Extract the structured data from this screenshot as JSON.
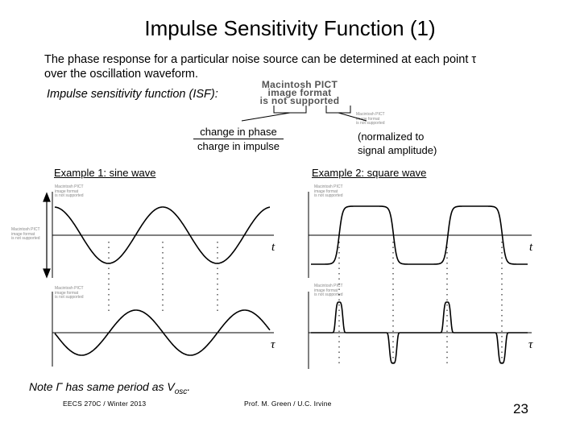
{
  "slide": {
    "title": "Impulse Sensitivity Function (1)",
    "intro_line1": "The phase response for a particular noise source can be determined at each point τ",
    "intro_line2": "over the oscillation waveform.",
    "isf_label": "Impulse sensitivity function (ISF):",
    "pict_large_line1": "Macintosh PICT",
    "pict_large_line2": "image format",
    "pict_large_line3": "is not supported",
    "pict_small": "Macintosh PICT\nimage format\nis not supported",
    "fraction_numerator": "change in phase",
    "fraction_denominator": "charge in impulse",
    "normalized_line1": "(normalized to",
    "normalized_line2": "signal amplitude)",
    "example1": "Example 1:  sine wave",
    "example2": "Example 2:  square wave",
    "axis_t": "t",
    "axis_tau": "τ",
    "note_prefix": "Note Γ has same period as V",
    "note_sub": "osc",
    "note_suffix": ".",
    "footer_left": "EECS 270C / Winter 2013",
    "footer_center": "Prof. M. Green / U.C. Irvine",
    "page_number": "23"
  },
  "chart_data": [
    {
      "type": "line",
      "name": "Example 1 waveform",
      "function": "sine",
      "period_px_note": "",
      "cycles": 2.6,
      "x_axis_label": "t"
    },
    {
      "type": "line",
      "name": "Example 1 ISF",
      "function": "sine (phase shifted)",
      "x_axis_label": "τ"
    },
    {
      "type": "line",
      "name": "Example 2 waveform",
      "function": "square (rounded)",
      "x_axis_label": "t"
    },
    {
      "type": "line",
      "name": "Example 2 ISF",
      "function": "pulses at transitions (positive on rising, negative on falling)",
      "x_axis_label": "τ"
    }
  ]
}
